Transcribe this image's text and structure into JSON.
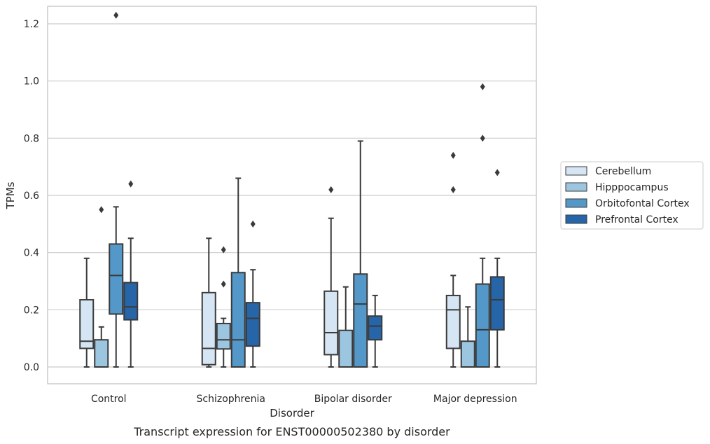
{
  "chart_data": {
    "type": "box",
    "title": "",
    "caption": "Transcript expression for ENST00000502380 by disorder",
    "xlabel": "Disorder",
    "ylabel": "TPMs",
    "ylim": [
      -0.06,
      1.29
    ],
    "yticks": [
      0.0,
      0.2,
      0.4,
      0.6,
      0.8,
      1.0,
      1.2
    ],
    "ytick_labels": [
      "0.0",
      "0.2",
      "0.4",
      "0.6",
      "0.8",
      "1.0",
      "1.2"
    ],
    "grid": "horizontal",
    "legend_position": "right",
    "categories": [
      "Control",
      "Schizophrenia",
      "Bipolar disorder",
      "Major depression"
    ],
    "series": [
      {
        "name": "Cerebellum",
        "color": "#d6e5f3",
        "boxes": [
          {
            "whisker_low": 0.0,
            "q1": 0.065,
            "median": 0.09,
            "q3": 0.235,
            "whisker_high": 0.38,
            "outliers": []
          },
          {
            "whisker_low": 0.0,
            "q1": 0.008,
            "median": 0.065,
            "q3": 0.26,
            "whisker_high": 0.45,
            "outliers": []
          },
          {
            "whisker_low": 0.0,
            "q1": 0.043,
            "median": 0.12,
            "q3": 0.265,
            "whisker_high": 0.52,
            "outliers": [
              0.62
            ]
          },
          {
            "whisker_low": 0.0,
            "q1": 0.065,
            "median": 0.2,
            "q3": 0.25,
            "whisker_high": 0.32,
            "outliers": [
              0.62,
              0.74
            ]
          }
        ]
      },
      {
        "name": "Hipppocampus",
        "color": "#9cc5df",
        "boxes": [
          {
            "whisker_low": 0.0,
            "q1": 0.0,
            "median": 0.0,
            "q3": 0.095,
            "whisker_high": 0.14,
            "outliers": [
              0.55
            ]
          },
          {
            "whisker_low": 0.0,
            "q1": 0.063,
            "median": 0.095,
            "q3": 0.152,
            "whisker_high": 0.17,
            "outliers": [
              0.29,
              0.41
            ]
          },
          {
            "whisker_low": 0.0,
            "q1": 0.0,
            "median": 0.0,
            "q3": 0.128,
            "whisker_high": 0.28,
            "outliers": []
          },
          {
            "whisker_low": 0.0,
            "q1": 0.0,
            "median": 0.0,
            "q3": 0.09,
            "whisker_high": 0.21,
            "outliers": []
          }
        ]
      },
      {
        "name": "Orbitofontal Cortex",
        "color": "#5398c9",
        "boxes": [
          {
            "whisker_low": 0.0,
            "q1": 0.185,
            "median": 0.32,
            "q3": 0.43,
            "whisker_high": 0.56,
            "outliers": [
              1.23
            ]
          },
          {
            "whisker_low": 0.0,
            "q1": 0.0,
            "median": 0.095,
            "q3": 0.33,
            "whisker_high": 0.66,
            "outliers": []
          },
          {
            "whisker_low": 0.0,
            "q1": 0.0,
            "median": 0.22,
            "q3": 0.325,
            "whisker_high": 0.79,
            "outliers": []
          },
          {
            "whisker_low": 0.0,
            "q1": 0.0,
            "median": 0.13,
            "q3": 0.29,
            "whisker_high": 0.38,
            "outliers": [
              0.8,
              0.98
            ]
          }
        ]
      },
      {
        "name": "Prefrontal Cortex",
        "color": "#2565a8",
        "boxes": [
          {
            "whisker_low": 0.0,
            "q1": 0.165,
            "median": 0.21,
            "q3": 0.295,
            "whisker_high": 0.45,
            "outliers": [
              0.64
            ]
          },
          {
            "whisker_low": 0.0,
            "q1": 0.073,
            "median": 0.17,
            "q3": 0.225,
            "whisker_high": 0.34,
            "outliers": [
              0.5
            ]
          },
          {
            "whisker_low": 0.0,
            "q1": 0.095,
            "median": 0.143,
            "q3": 0.178,
            "whisker_high": 0.25,
            "outliers": []
          },
          {
            "whisker_low": 0.0,
            "q1": 0.13,
            "median": 0.235,
            "q3": 0.315,
            "whisker_high": 0.38,
            "outliers": [
              0.68
            ]
          }
        ]
      }
    ]
  }
}
